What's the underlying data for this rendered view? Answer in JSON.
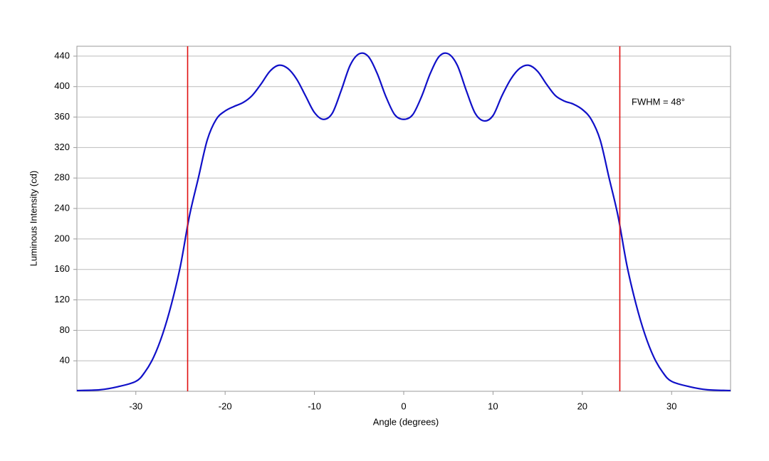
{
  "chart_data": {
    "type": "line",
    "x_label": "Angle (degrees)",
    "y_label": "Luminous Intensity (cd)",
    "annotation": "FWHM = 48°",
    "x": [
      -36.6,
      -34,
      -32,
      -30,
      -29,
      -28,
      -27,
      -26,
      -25,
      -24,
      -23,
      -22,
      -21,
      -20,
      -19,
      -18,
      -17,
      -16,
      -15,
      -14,
      -13,
      -12,
      -11,
      -10,
      -9,
      -8,
      -7,
      -6,
      -5,
      -4,
      -3,
      -2,
      -1,
      0,
      1,
      2,
      3,
      4,
      5,
      6,
      7,
      8,
      9,
      10,
      11,
      12,
      13,
      14,
      15,
      16,
      17,
      18,
      19,
      20,
      21,
      22,
      23,
      24,
      25,
      26,
      27,
      28,
      29,
      30,
      32,
      34,
      36.6
    ],
    "series": [
      {
        "color": "#1010c8",
        "values": [
          1,
          2,
          6,
          13,
          25,
          45,
          75,
          115,
          165,
          230,
          280,
          330,
          357,
          368,
          374,
          379,
          388,
          403,
          420,
          428,
          424,
          410,
          388,
          366,
          357,
          365,
          395,
          428,
          443,
          440,
          418,
          387,
          363,
          357,
          363,
          387,
          418,
          440,
          443,
          428,
          395,
          365,
          355,
          362,
          388,
          410,
          424,
          428,
          420,
          403,
          388,
          381,
          377,
          370,
          357,
          330,
          280,
          230,
          165,
          115,
          75,
          45,
          25,
          13,
          6,
          2,
          1
        ]
      }
    ],
    "vlines": {
      "color": "#e01010",
      "x": [
        -24.2,
        24.2
      ]
    },
    "xlim": [
      -36.6,
      36.6
    ],
    "xticks": [
      -30,
      -20,
      -10,
      0,
      10,
      20,
      30
    ],
    "ylim": [
      0,
      453
    ],
    "yticks": [
      40,
      80,
      120,
      160,
      200,
      240,
      280,
      320,
      360,
      400,
      440
    ],
    "grid": true
  }
}
